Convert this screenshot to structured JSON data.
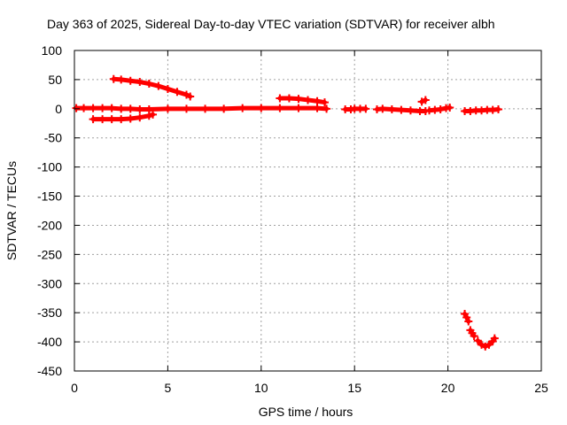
{
  "chart_data": {
    "type": "scatter",
    "title": "Day 363 of 2025, Sidereal Day-to-day VTEC variation (SDTVAR) for receiver albh",
    "xlabel": "GPS time / hours",
    "ylabel": "SDTVAR / TECUs",
    "xlim": [
      0,
      25
    ],
    "ylim": [
      -450,
      100
    ],
    "xticks": [
      0,
      5,
      10,
      15,
      20,
      25
    ],
    "yticks": [
      100,
      50,
      0,
      -50,
      -100,
      -150,
      -200,
      -250,
      -300,
      -350,
      -400,
      -450
    ],
    "grid": true,
    "marker": "plus",
    "color": "#ff0000",
    "series": [
      {
        "segments": [
          {
            "x": [
              0.1,
              0.5,
              1.0,
              1.5,
              2.0,
              2.5,
              3.0,
              3.5,
              4.0,
              5.0,
              6.0,
              7.0,
              8.0,
              9.0,
              10.0,
              11.0,
              12.0,
              13.0,
              13.5
            ],
            "y": [
              1,
              1,
              1,
              1,
              1,
              0,
              0,
              -1,
              -1,
              0,
              0,
              0,
              0,
              1,
              1,
              1,
              1,
              1,
              0
            ]
          },
          {
            "x": [
              1.0,
              1.5,
              2.0,
              2.5,
              3.0,
              3.5,
              4.0,
              4.2
            ],
            "y": [
              -18,
              -18,
              -18,
              -18,
              -17,
              -15,
              -12,
              -10
            ]
          },
          {
            "x": [
              2.1,
              2.5,
              3.0,
              3.5,
              4.0,
              4.5,
              5.0,
              5.5,
              6.0,
              6.2
            ],
            "y": [
              51,
              50,
              48,
              46,
              43,
              39,
              34,
              29,
              24,
              21
            ]
          },
          {
            "x": [
              11.0,
              11.5,
              12.0,
              12.5,
              13.0,
              13.4
            ],
            "y": [
              18,
              18,
              17,
              15,
              13,
              11
            ]
          },
          {
            "x": [
              14.5,
              14.8,
              15.0,
              15.3,
              15.6
            ],
            "y": [
              -1,
              -1,
              0,
              0,
              0
            ]
          },
          {
            "x": [
              16.2,
              16.5,
              17.0,
              17.5,
              18.0,
              18.5,
              18.8
            ],
            "y": [
              -1,
              0,
              -1,
              -2,
              -3,
              -4,
              -4
            ]
          },
          {
            "x": [
              18.6,
              18.8
            ],
            "y": [
              12,
              15
            ]
          },
          {
            "x": [
              19.0,
              19.3,
              19.6,
              19.9,
              20.1
            ],
            "y": [
              -3,
              -2,
              -1,
              1,
              2
            ]
          },
          {
            "x": [
              20.9,
              21.2,
              21.5,
              21.8,
              22.1,
              22.4,
              22.7
            ],
            "y": [
              -4,
              -4,
              -3,
              -3,
              -2,
              -2,
              -1
            ]
          },
          {
            "x": [
              20.9,
              21.0,
              21.1
            ],
            "y": [
              -352,
              -358,
              -365
            ]
          },
          {
            "x": [
              21.2,
              21.3,
              21.4
            ],
            "y": [
              -380,
              -385,
              -390
            ]
          },
          {
            "x": [
              21.6,
              21.8,
              22.0,
              22.2,
              22.4,
              22.5
            ],
            "y": [
              -398,
              -405,
              -408,
              -405,
              -399,
              -394
            ]
          }
        ]
      }
    ]
  }
}
